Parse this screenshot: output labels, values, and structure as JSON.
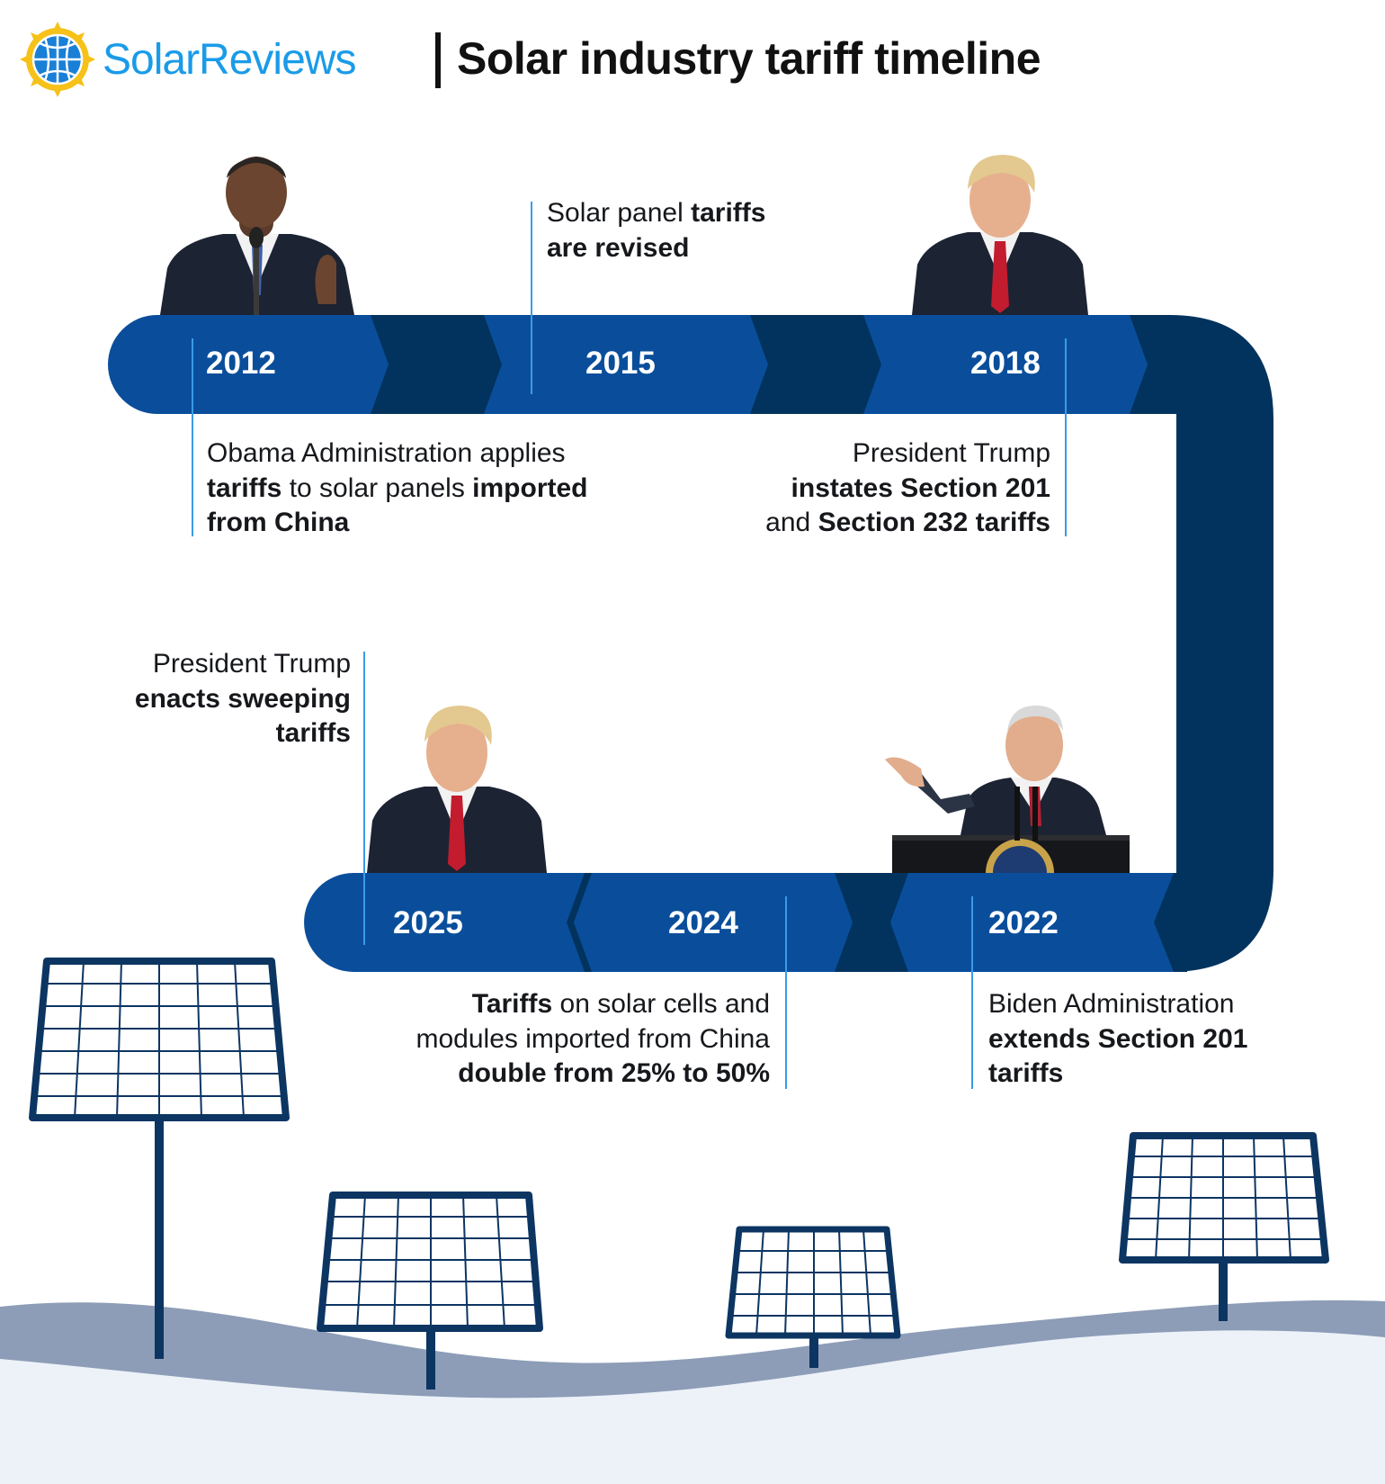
{
  "header": {
    "brand": "SolarReviews",
    "title": "Solar industry tariff timeline"
  },
  "colors": {
    "brand_blue": "#1a9be8",
    "timeline_blue": "#0a4e9b",
    "timeline_navy": "#02335e",
    "guide_line": "#3a9be6",
    "ground": "#8d9db7",
    "ground_light": "#edf2f9",
    "panel_stroke": "#0c3562"
  },
  "timeline": {
    "events": [
      {
        "year": "2012",
        "text": {
          "p1": "Obama Administration applies",
          "b1": "tariffs",
          "p2": "to solar panels",
          "b2": "imported",
          "b3": "from China"
        },
        "figure": "barack-obama-photo"
      },
      {
        "year": "2015",
        "text": {
          "p1": "Solar panel",
          "b1": "tariffs",
          "b2": "are revised"
        }
      },
      {
        "year": "2018",
        "text": {
          "p1": "President Trump",
          "b1": "instates Section 201",
          "p2": "and",
          "b2": "Section 232 tariffs"
        },
        "figure": "donald-trump-photo"
      },
      {
        "year": "2022",
        "text": {
          "p1": "Biden Administration",
          "b1": "extends Section 201",
          "b2": "tariffs"
        },
        "figure": "joe-biden-photo"
      },
      {
        "year": "2024",
        "text": {
          "b1": "Tariffs",
          "p1": "on solar cells and",
          "p2": "modules imported from China",
          "b2": "double from 25% to 50%"
        }
      },
      {
        "year": "2025",
        "text": {
          "p1": "President Trump",
          "b1": "enacts sweeping",
          "b2": "tariffs"
        },
        "figure": "donald-trump-photo"
      }
    ]
  },
  "illustration": {
    "icons": [
      "sun-icon",
      "solar-panel-icon"
    ],
    "panel_count": 4
  }
}
